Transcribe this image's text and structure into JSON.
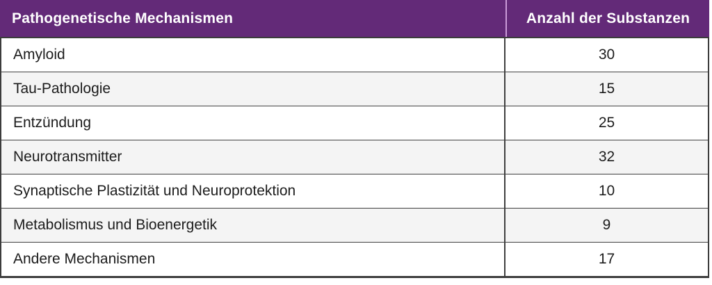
{
  "page": {
    "background": "#FFFFFF"
  },
  "table": {
    "headers": {
      "mechanism": "Pathogenetische Mechanismen",
      "count": "Anzahl der Substanzen"
    },
    "rows": [
      {
        "mechanism": "Amyloid",
        "count": "30"
      },
      {
        "mechanism": "Tau-Pathologie",
        "count": "15"
      },
      {
        "mechanism": "Entzündung",
        "count": "25"
      },
      {
        "mechanism": "Neurotransmitter",
        "count": "32"
      },
      {
        "mechanism": "Synaptische Plastizität und Neuroprotektion",
        "count": "10"
      },
      {
        "mechanism": "Metabolismus und Bioenergetik",
        "count": "9"
      },
      {
        "mechanism": "Andere Mechanismen",
        "count": "17"
      }
    ],
    "colors": {
      "header_bg": "#632A78",
      "header_text": "#FFFFFF",
      "header_divider": "#CB9BD8",
      "border": "#3C3C3C",
      "row_bg": "#FFFFFF",
      "row_alt_bg": "#F4F4F4",
      "text": "#1C1C1C"
    }
  },
  "chart_data": {
    "type": "table",
    "columns": [
      "Pathogenetische Mechanismen",
      "Anzahl der Substanzen"
    ],
    "rows": [
      [
        "Amyloid",
        30
      ],
      [
        "Tau-Pathologie",
        15
      ],
      [
        "Entzündung",
        25
      ],
      [
        "Neurotransmitter",
        32
      ],
      [
        "Synaptische Plastizität und Neuroprotektion",
        10
      ],
      [
        "Metabolismus und Bioenergetik",
        9
      ],
      [
        "Andere Mechanismen",
        17
      ]
    ],
    "layout_hints": {
      "header_style": "purple background, white bold text",
      "zebra_striping": true,
      "count_column_alignment": "center"
    }
  }
}
